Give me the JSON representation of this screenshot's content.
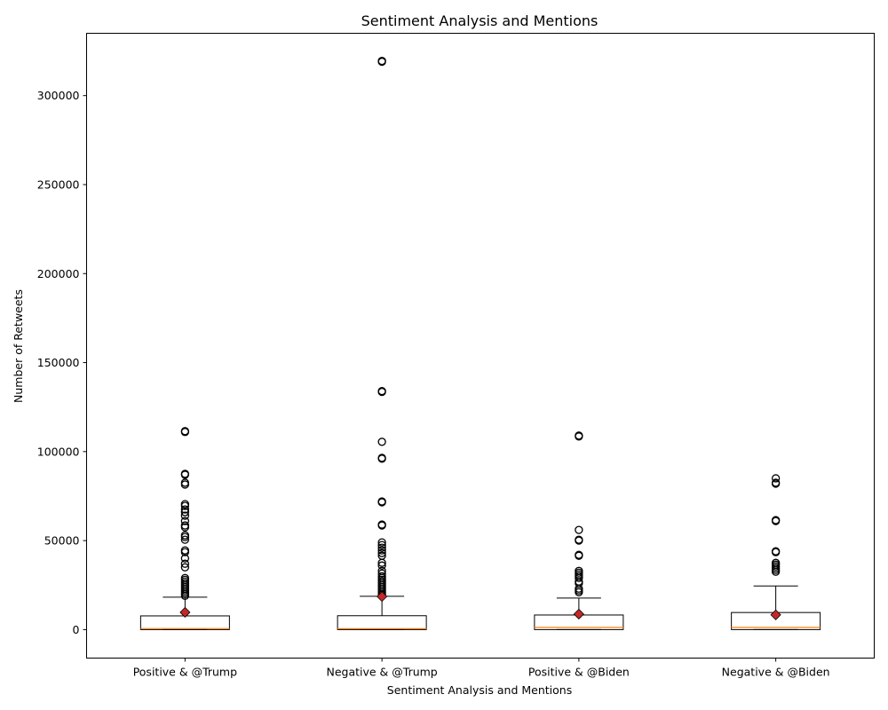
{
  "chart_data": {
    "type": "box",
    "title": "Sentiment Analysis and Mentions",
    "xlabel": "Sentiment Analysis and Mentions",
    "ylabel": "Number of Retweets",
    "ylim": [
      -16000,
      335000
    ],
    "yticks": [
      0,
      50000,
      100000,
      150000,
      200000,
      250000,
      300000
    ],
    "grid": false,
    "colors": {
      "median": "#ff7f0e",
      "mean_marker": "#c62828",
      "box_edge": "#000000",
      "flier_edge": "#000000"
    },
    "categories": [
      "Positive & @Trump",
      "Negative & @Trump",
      "Positive & @Biden",
      "Negative & @Biden"
    ],
    "boxes": [
      {
        "label": "Positive & @Trump",
        "q1": 0,
        "median": 600,
        "q3": 7700,
        "whisker_low": 0,
        "whisker_high": 18200,
        "mean": 9700,
        "outliers": [
          111500,
          111000,
          87500,
          87000,
          82500,
          81500,
          70500,
          69500,
          67500,
          66000,
          64000,
          61000,
          58500,
          57500,
          53000,
          52000,
          50500,
          44500,
          43500,
          40000,
          37000,
          35000,
          29000,
          28000,
          27000,
          26000,
          25000,
          24000,
          23000,
          22000,
          21000,
          20000,
          19000
        ]
      },
      {
        "label": "Negative & @Trump",
        "q1": 0,
        "median": 500,
        "q3": 7800,
        "whisker_low": 0,
        "whisker_high": 18700,
        "mean": 18600,
        "outliers": [
          319500,
          319000,
          134000,
          133500,
          105500,
          96500,
          96000,
          72000,
          71500,
          59000,
          58500,
          49000,
          47500,
          46000,
          44500,
          43000,
          41500,
          37500,
          36000,
          33000,
          31500,
          30000,
          29000,
          28000,
          27000,
          26000,
          25000,
          24000,
          23000,
          22000,
          21000,
          20000,
          19500
        ]
      },
      {
        "label": "Positive & @Biden",
        "q1": 0,
        "median": 1200,
        "q3": 8200,
        "whisker_low": 0,
        "whisker_high": 17700,
        "mean": 8700,
        "outliers": [
          109000,
          108500,
          56000,
          50500,
          50000,
          42000,
          41500,
          33000,
          32000,
          31000,
          30000,
          29000,
          27000,
          26000,
          23000,
          22000,
          21000
        ]
      },
      {
        "label": "Negative & @Biden",
        "q1": 0,
        "median": 1200,
        "q3": 9600,
        "whisker_low": 0,
        "whisker_high": 24500,
        "mean": 8300,
        "outliers": [
          85000,
          82500,
          82000,
          61500,
          61000,
          44000,
          43500,
          37500,
          36500,
          35500,
          34500,
          33500,
          32500
        ]
      }
    ]
  }
}
